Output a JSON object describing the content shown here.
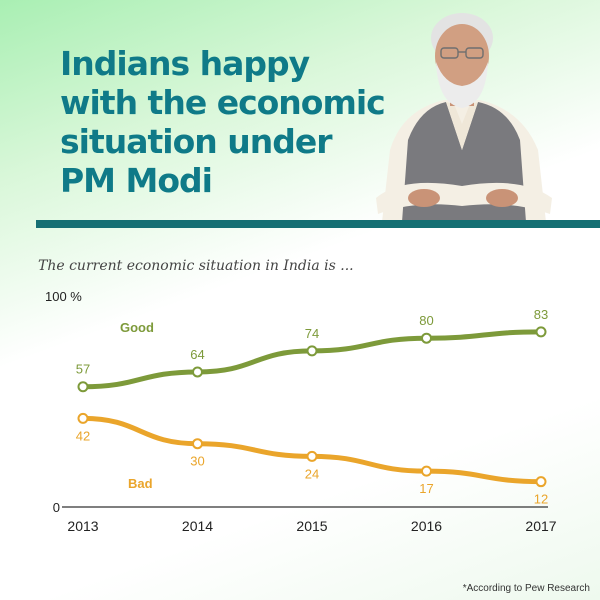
{
  "header": {
    "title_lines": [
      "Indians happy",
      "with the economic",
      "situation under",
      "PM Modi"
    ]
  },
  "footnote": "*According to Pew Research",
  "colors": {
    "title": "#0f7a88",
    "divider": "#156f73",
    "good": "#7d9a3a",
    "bad": "#eaa52b"
  },
  "chart_data": {
    "type": "line",
    "title": "The current economic situation in India is ...",
    "x": [
      "2013",
      "2014",
      "2015",
      "2016",
      "2017"
    ],
    "ylim": [
      0,
      100
    ],
    "y_ticks": [
      "0",
      "100 %"
    ],
    "grid": false,
    "series": [
      {
        "name": "Good",
        "values": [
          57,
          64,
          74,
          80,
          83
        ],
        "color": "#7d9a3a"
      },
      {
        "name": "Bad",
        "values": [
          42,
          30,
          24,
          17,
          12
        ],
        "color": "#eaa52b"
      }
    ]
  }
}
